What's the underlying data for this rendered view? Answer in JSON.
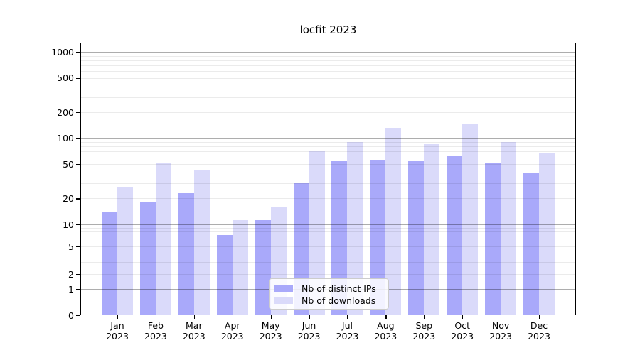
{
  "header": {
    "title": "locfit 2023"
  },
  "chart_data": {
    "type": "bar",
    "title": "locfit 2023",
    "xlabel": "",
    "ylabel": "",
    "y_scale": "log-like (logarithmic above 10, compressed toward 0 below 10, 0 included)",
    "y_ticks": [
      0,
      1,
      2,
      5,
      10,
      20,
      50,
      100,
      200,
      500,
      1000
    ],
    "grid": "major gray lines at powers of 10, faint minor log-spaced lines, drawn over bars",
    "legend_position": "lower center",
    "months": [
      "Jan",
      "Feb",
      "Mar",
      "Apr",
      "May",
      "Jun",
      "Jul",
      "Aug",
      "Sep",
      "Oct",
      "Nov",
      "Dec"
    ],
    "year": "2023",
    "categories": [
      "Jan 2023",
      "Feb 2023",
      "Mar 2023",
      "Apr 2023",
      "May 2023",
      "Jun 2023",
      "Jul 2023",
      "Aug 2023",
      "Sep 2023",
      "Oct 2023",
      "Nov 2023",
      "Dec 2023"
    ],
    "series": [
      {
        "name": "Nb of distinct IPs",
        "color": "#a9a9fa",
        "values": [
          14,
          18,
          23,
          7,
          11,
          30,
          54,
          56,
          54,
          61,
          51,
          39
        ]
      },
      {
        "name": "Nb of downloads",
        "color": "#dadafa",
        "values": [
          27,
          51,
          42,
          11,
          16,
          70,
          90,
          130,
          84,
          148,
          90,
          67
        ]
      }
    ],
    "colors": {
      "distinct_ips": "#a9a9fa",
      "downloads": "#dadafa",
      "major_grid": "#adadad",
      "minor_grid": "#ebebeb",
      "axis": "#000000",
      "background": "#ffffff"
    }
  }
}
